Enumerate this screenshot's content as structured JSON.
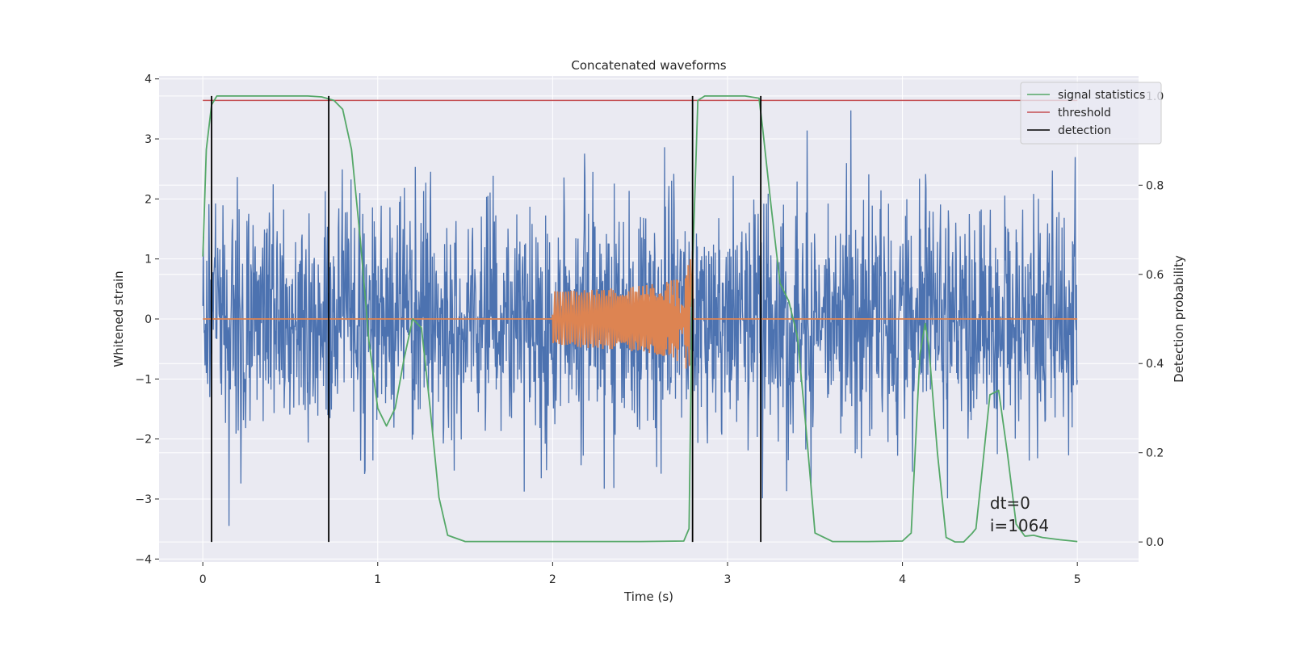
{
  "chart_data": {
    "type": "line",
    "title": "Concatenated waveforms",
    "xlabel": "Time (s)",
    "ylabel": "Whitened strain",
    "ylabel_right": "Detection probability",
    "xlim": [
      -0.25,
      5.35
    ],
    "ylim": [
      -4.05,
      4.05
    ],
    "ylim_right": [
      -0.045,
      1.045
    ],
    "xticks": [
      "0",
      "1",
      "2",
      "3",
      "4",
      "5"
    ],
    "yticks": [
      "4",
      "3",
      "2",
      "1",
      "0",
      "−1",
      "−2",
      "−3",
      "−4"
    ],
    "yticks_right": [
      "1.0",
      "0.8",
      "0.6",
      "0.4",
      "0.2",
      "0.0"
    ],
    "grid": true,
    "legend_position": "top-right",
    "series": [
      {
        "name": "",
        "axis": "left",
        "color": "#4c72b0",
        "description_of_values": "whitened noise strain sampled 0 to 5 s",
        "x_range": [
          0,
          5
        ],
        "amplitude_rms": 1.0
      },
      {
        "name": "",
        "axis": "left",
        "color": "#dd8452",
        "chirp": {
          "t_start": 2.0,
          "t_end": 2.8,
          "peak_amplitude": 1.7
        },
        "x_range": [
          0,
          5
        ]
      },
      {
        "name": "signal statistics",
        "axis": "right",
        "color": "#55a868",
        "x": [
          0.0,
          0.02,
          0.05,
          0.08,
          0.12,
          0.2,
          0.4,
          0.6,
          0.68,
          0.75,
          0.8,
          0.85,
          0.9,
          0.95,
          1.0,
          1.05,
          1.1,
          1.15,
          1.2,
          1.25,
          1.3,
          1.35,
          1.4,
          1.5,
          2.0,
          2.5,
          2.75,
          2.78,
          2.8,
          2.83,
          2.87,
          2.95,
          3.1,
          3.18,
          3.2,
          3.25,
          3.3,
          3.35,
          3.4,
          3.45,
          3.5,
          3.6,
          3.8,
          4.0,
          4.05,
          4.1,
          4.13,
          4.15,
          4.2,
          4.25,
          4.3,
          4.35,
          4.4,
          4.42,
          4.45,
          4.5,
          4.55,
          4.6,
          4.65,
          4.7,
          4.75,
          4.8,
          4.9,
          5.0
        ],
        "values": [
          0.64,
          0.88,
          0.98,
          1.0,
          1.0,
          1.0,
          1.0,
          1.0,
          0.998,
          0.99,
          0.97,
          0.88,
          0.68,
          0.45,
          0.3,
          0.26,
          0.3,
          0.41,
          0.5,
          0.48,
          0.3,
          0.1,
          0.015,
          0.001,
          0.001,
          0.001,
          0.002,
          0.03,
          0.62,
          0.99,
          1.0,
          1.0,
          1.0,
          0.995,
          0.93,
          0.75,
          0.58,
          0.54,
          0.46,
          0.25,
          0.02,
          0.001,
          0.001,
          0.002,
          0.02,
          0.42,
          0.49,
          0.44,
          0.2,
          0.01,
          0.0,
          0.0,
          0.02,
          0.03,
          0.14,
          0.33,
          0.34,
          0.2,
          0.04,
          0.013,
          0.015,
          0.01,
          0.005,
          0.001
        ]
      },
      {
        "name": "threshold",
        "axis": "right",
        "color": "#c44e52",
        "x": [
          0.0,
          5.0
        ],
        "values": [
          0.99,
          0.99
        ]
      },
      {
        "name": "detection",
        "axis": "right",
        "color": "#000000",
        "x": [
          0.05,
          0.72,
          2.8,
          3.19
        ],
        "span": [
          0.0,
          1.0
        ]
      }
    ],
    "annotations": [
      "dt=0",
      "i=1064"
    ]
  }
}
